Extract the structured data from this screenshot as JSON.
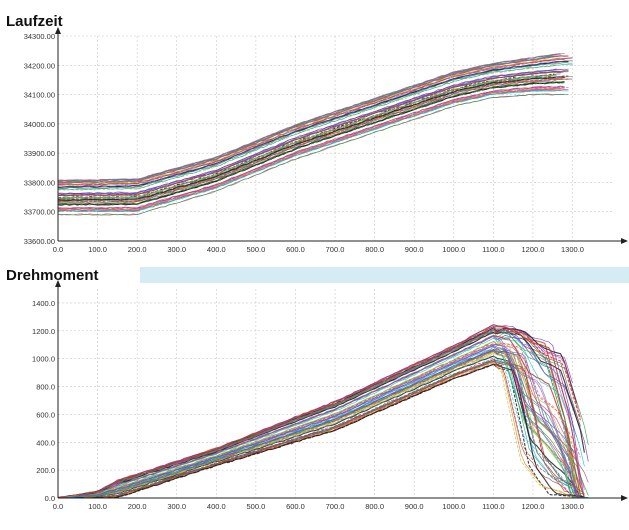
{
  "colors": {
    "band": "#d6ecf5",
    "grid": "#c8c8c8",
    "axis": "#222222",
    "trace_palette": [
      "#1b1b1b",
      "#e8308a",
      "#1aa7a7",
      "#3b5bd6",
      "#7a2fb8",
      "#28a745",
      "#e67e22",
      "#c0392b",
      "#17becf",
      "#9467bd",
      "#8c564b",
      "#bcbd22",
      "#d62728",
      "#2ca02c"
    ]
  },
  "chart_data": [
    {
      "type": "line",
      "title": "Laufzeit",
      "xlabel": "",
      "ylabel": "",
      "xlim": [
        0,
        1420
      ],
      "ylim": [
        33600,
        34300
      ],
      "x_ticks": [
        0,
        100,
        200,
        300,
        400,
        500,
        600,
        700,
        800,
        900,
        1000,
        1100,
        1200,
        1300
      ],
      "x_tick_labels": [
        "0.0",
        "100.0",
        "200.0",
        "300.0",
        "400.0",
        "500.0",
        "600.0",
        "700.0",
        "800.0",
        "900.0",
        "1000.0",
        "1100.0",
        "1200.0",
        "1300.0"
      ],
      "y_ticks": [
        33600,
        33700,
        33800,
        33900,
        34000,
        34100,
        34200,
        34300
      ],
      "y_tick_labels": [
        "33600.00",
        "33700.00",
        "33800.00",
        "33900.00",
        "34000.00",
        "34100.00",
        "34200.00",
        "34300.00"
      ],
      "grid": true,
      "series_count": 60,
      "trace_envelope": {
        "x": [
          0,
          200,
          400,
          600,
          800,
          1000,
          1100,
          1200,
          1250,
          1280
        ],
        "lower": [
          33690,
          33690,
          33770,
          33880,
          33970,
          34060,
          34090,
          34100,
          34100,
          34100
        ],
        "upper": [
          33810,
          33815,
          33890,
          34000,
          34090,
          34180,
          34210,
          34230,
          34240,
          34245
        ]
      }
    },
    {
      "type": "line",
      "title": "Drehmoment",
      "xlabel": "",
      "ylabel": "",
      "xlim": [
        0,
        1420
      ],
      "ylim": [
        0,
        1500
      ],
      "x_ticks": [
        0,
        100,
        200,
        300,
        400,
        500,
        600,
        700,
        800,
        900,
        1000,
        1100,
        1200,
        1300
      ],
      "x_tick_labels": [
        "0.0",
        "100.0",
        "200.0",
        "300.0",
        "400.0",
        "500.0",
        "600.0",
        "700.0",
        "800.0",
        "900.0",
        "1000.0",
        "1100.0",
        "1200.0",
        "1300.0"
      ],
      "y_ticks": [
        0,
        200,
        400,
        600,
        800,
        1000,
        1200,
        1400
      ],
      "y_tick_labels": [
        "0.0",
        "200.0",
        "400.0",
        "600.0",
        "800.0",
        "1000.0",
        "1200.0",
        "1400.0"
      ],
      "grid": true,
      "series_count": 60,
      "trace_envelope": {
        "x": [
          0,
          100,
          150,
          400,
          700,
          1000,
          1100,
          1150,
          1200,
          1250,
          1300,
          1330
        ],
        "lower": [
          0,
          0,
          0,
          230,
          480,
          850,
          950,
          900,
          200,
          0,
          0,
          0
        ],
        "upper": [
          0,
          50,
          130,
          360,
          700,
          1100,
          1250,
          1240,
          1180,
          1150,
          600,
          0
        ]
      }
    }
  ]
}
